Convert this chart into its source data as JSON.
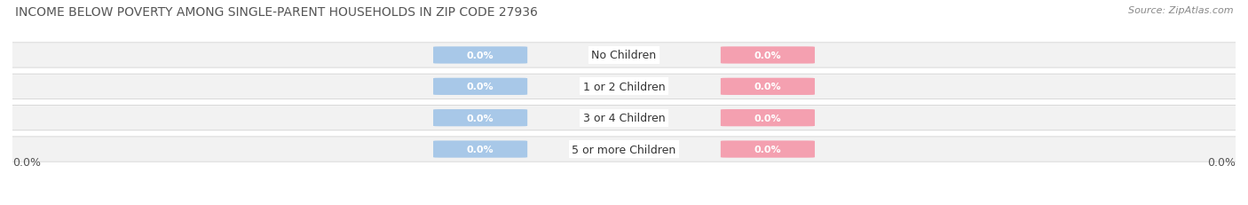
{
  "title": "INCOME BELOW POVERTY AMONG SINGLE-PARENT HOUSEHOLDS IN ZIP CODE 27936",
  "source": "Source: ZipAtlas.com",
  "categories": [
    "No Children",
    "1 or 2 Children",
    "3 or 4 Children",
    "5 or more Children"
  ],
  "father_values": [
    0.0,
    0.0,
    0.0,
    0.0
  ],
  "mother_values": [
    0.0,
    0.0,
    0.0,
    0.0
  ],
  "father_color": "#a8c8e8",
  "mother_color": "#f4a0b0",
  "bar_bg_color": "#efefef",
  "bar_border_color": "#cccccc",
  "x_left_label": "0.0%",
  "x_right_label": "0.0%",
  "title_fontsize": 10,
  "source_fontsize": 8,
  "axis_label_fontsize": 9,
  "category_fontsize": 9,
  "value_label_fontsize": 8,
  "legend_fontsize": 9,
  "background_color": "#ffffff",
  "bar_height": 0.62,
  "row_bg_color": "#f2f2f2"
}
